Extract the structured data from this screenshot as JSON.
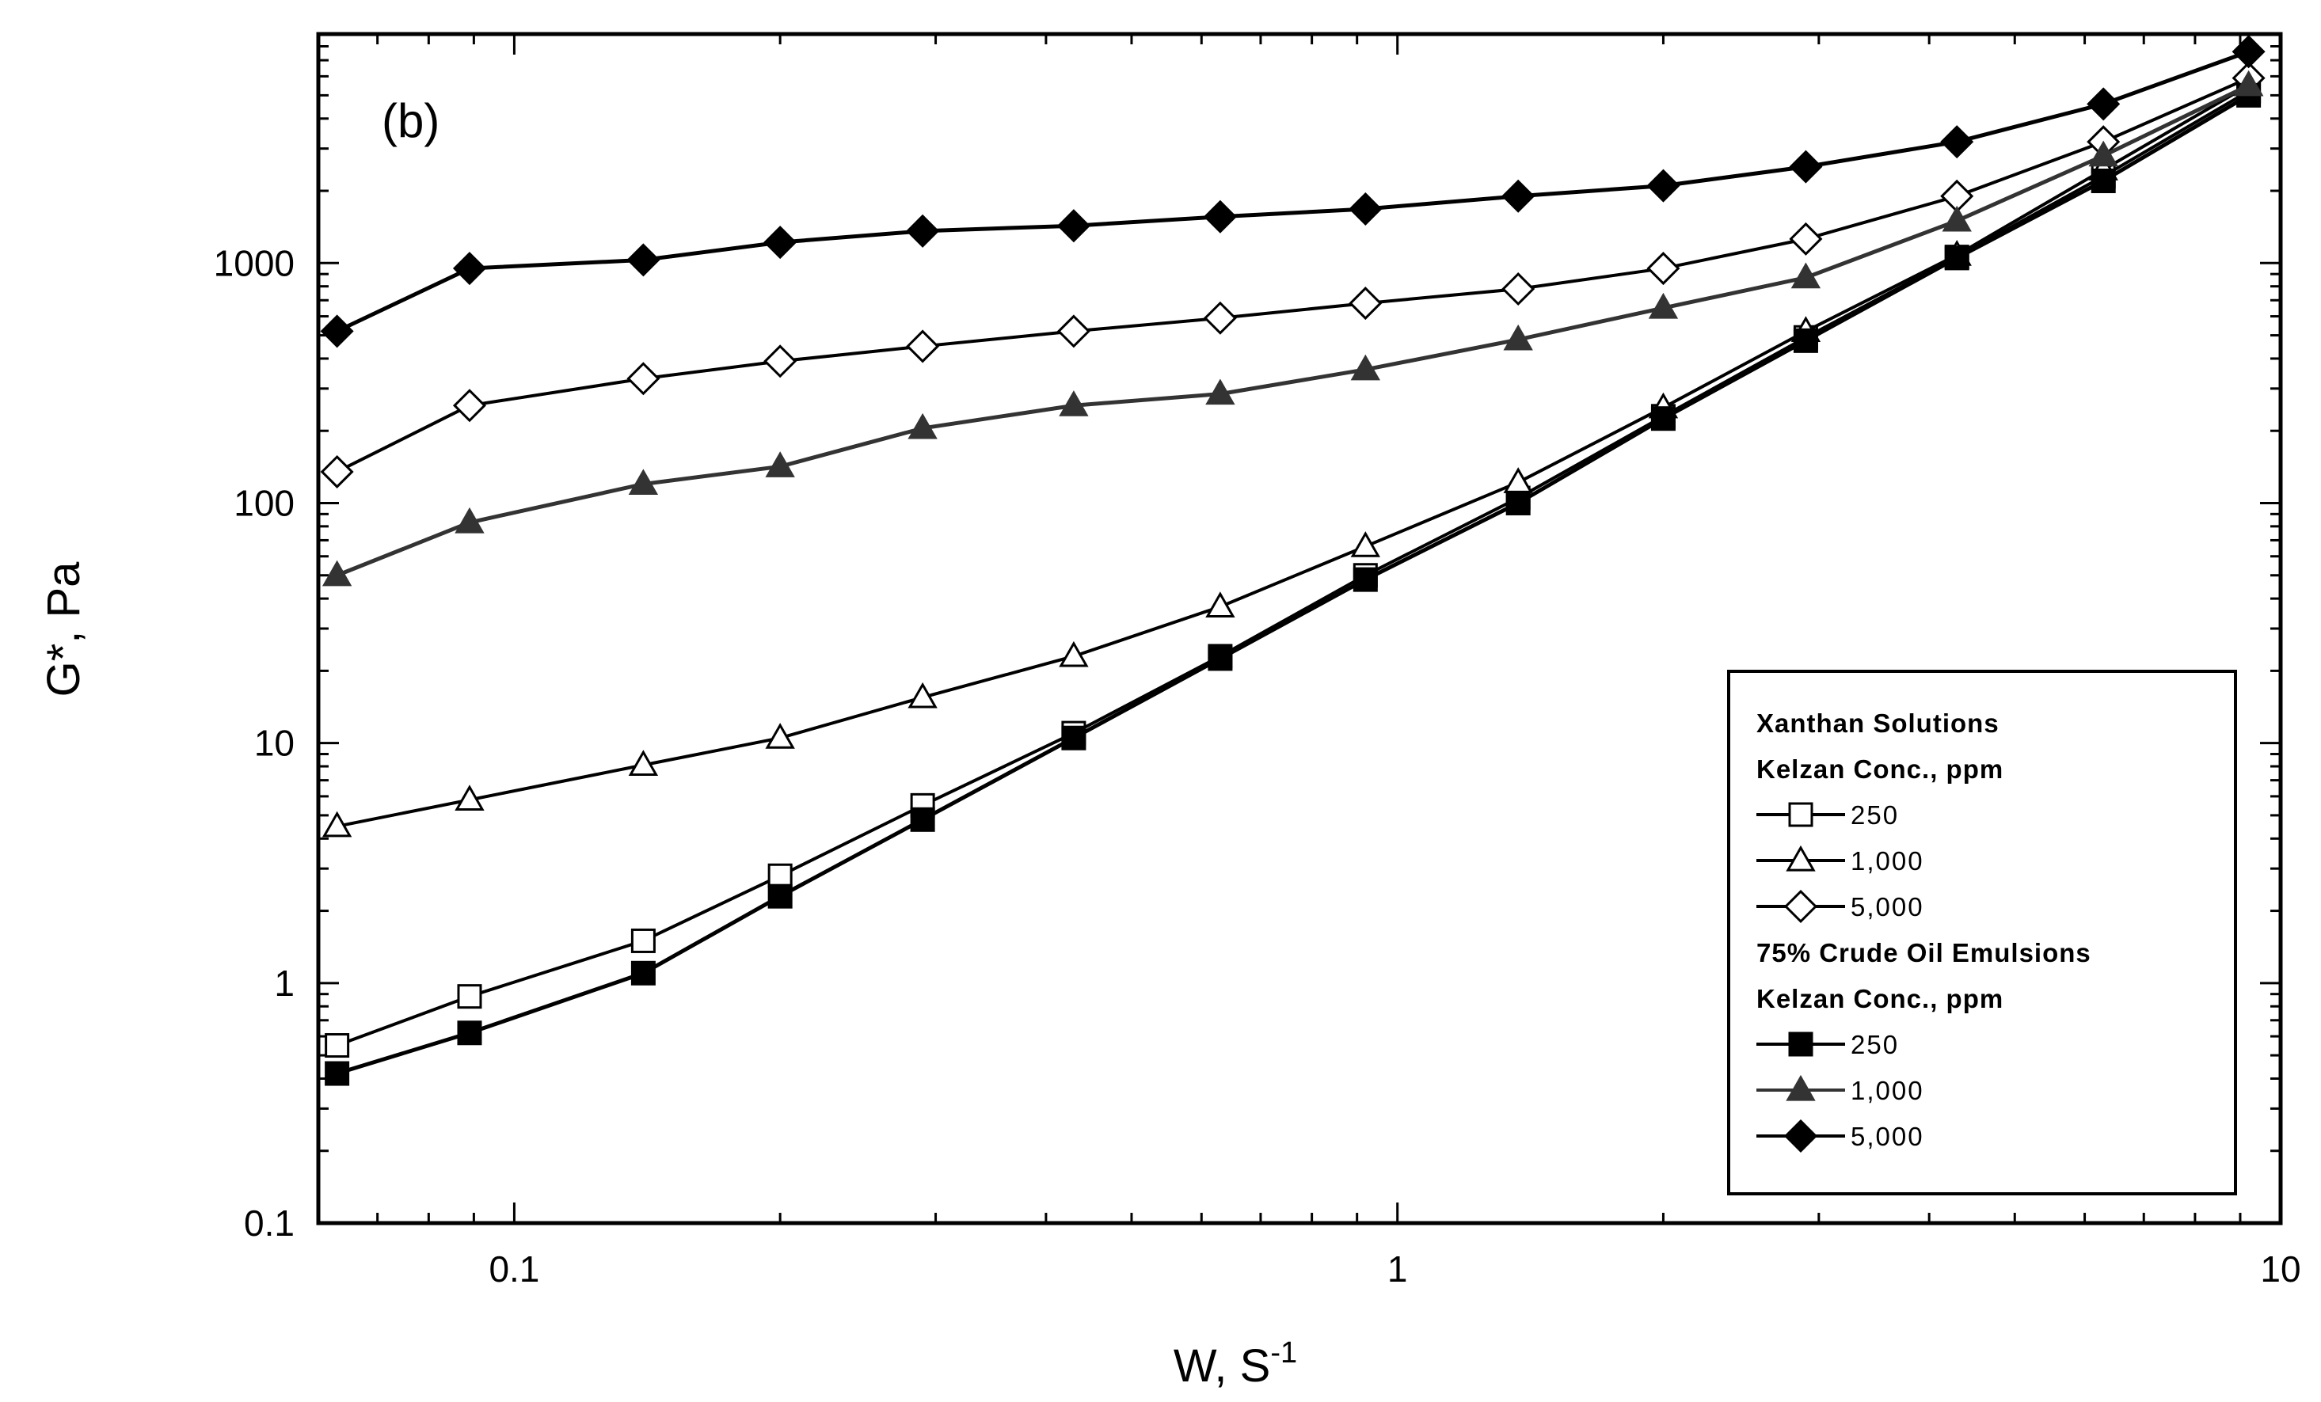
{
  "chart_data": {
    "type": "line",
    "panel_label": "(b)",
    "xlabel": "W, S",
    "xlabel_sup": "-1",
    "ylabel": "G*, Pa",
    "xscale": "log",
    "yscale": "log",
    "xlim": [
      0.06,
      10
    ],
    "ylim": [
      0.1,
      9000
    ],
    "x_ticks": [
      {
        "value": 0.1,
        "label": "0.1"
      },
      {
        "value": 1,
        "label": "1"
      },
      {
        "value": 10,
        "label": "10"
      }
    ],
    "y_ticks": [
      {
        "value": 0.1,
        "label": "0.1"
      },
      {
        "value": 1,
        "label": "1"
      },
      {
        "value": 10,
        "label": "10"
      },
      {
        "value": 100,
        "label": "100"
      },
      {
        "value": 1000,
        "label": "1000"
      }
    ],
    "x": [
      0.063,
      0.089,
      0.14,
      0.2,
      0.29,
      0.43,
      0.63,
      0.92,
      1.37,
      2.0,
      2.9,
      4.3,
      6.3,
      9.2
    ],
    "legend_groups": [
      {
        "title_lines": [
          "Xanthan Solutions",
          "Kelzan Conc., ppm"
        ]
      },
      {
        "title_lines": [
          "75% Crude Oil Emulsions",
          "Kelzan Conc., ppm"
        ]
      }
    ],
    "series": [
      {
        "name": "250",
        "group": 0,
        "marker": "square",
        "filled": false,
        "color": "#000000",
        "values": [
          0.55,
          0.88,
          1.5,
          2.8,
          5.5,
          11,
          23,
          50,
          105,
          230,
          490,
          1060,
          2300,
          5200
        ]
      },
      {
        "name": "1,000",
        "group": 0,
        "marker": "triangle",
        "filled": false,
        "color": "#000000",
        "values": [
          4.5,
          5.8,
          8.1,
          10.5,
          15.5,
          23,
          37,
          66,
          122,
          250,
          520,
          1080,
          2450,
          5500
        ]
      },
      {
        "name": "5,000",
        "group": 0,
        "marker": "diamond",
        "filled": false,
        "color": "#000000",
        "values": [
          135,
          255,
          330,
          390,
          450,
          520,
          590,
          680,
          780,
          950,
          1260,
          1900,
          3200,
          5900
        ]
      },
      {
        "name": "250",
        "group": 1,
        "marker": "square",
        "filled": true,
        "color": "#000000",
        "values": [
          0.42,
          0.62,
          1.1,
          2.3,
          4.8,
          10.5,
          22.5,
          48,
          100,
          225,
          475,
          1050,
          2200,
          5000
        ]
      },
      {
        "name": "1,000",
        "group": 1,
        "marker": "triangle",
        "filled": true,
        "color": "#333333",
        "values": [
          50,
          83,
          120,
          142,
          205,
          255,
          285,
          360,
          480,
          650,
          870,
          1500,
          2800,
          5500
        ]
      },
      {
        "name": "5,000",
        "group": 1,
        "marker": "diamond",
        "filled": true,
        "color": "#000000",
        "values": [
          520,
          950,
          1030,
          1220,
          1360,
          1430,
          1560,
          1680,
          1900,
          2100,
          2520,
          3200,
          4600,
          7600
        ]
      }
    ]
  }
}
